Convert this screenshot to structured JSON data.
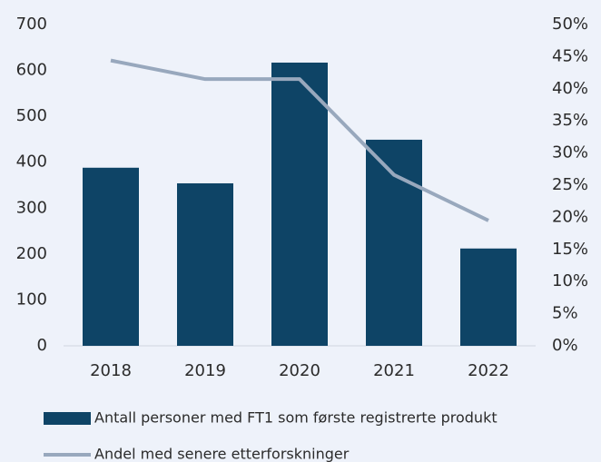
{
  "chart_data": {
    "type": "bar_line",
    "categories": [
      "2018",
      "2019",
      "2020",
      "2021",
      "2022"
    ],
    "series": [
      {
        "name": "Antall personer med FT1 som første registrerte produkt",
        "type": "bar",
        "color": "#0e4466",
        "values": [
          388,
          354,
          617,
          449,
          212
        ]
      },
      {
        "name": "Andel med senere etterforskninger",
        "type": "line",
        "axis": "y2",
        "color": "#98a8bd",
        "values": [
          44.4,
          41.5,
          41.5,
          26.6,
          19.5
        ]
      }
    ],
    "ylim": [
      0,
      700
    ],
    "yticks": [
      0,
      100,
      200,
      300,
      400,
      500,
      600,
      700
    ],
    "y2lim": [
      0,
      50
    ],
    "y2ticks": [
      {
        "value": 0,
        "label": "0%"
      },
      {
        "value": 5,
        "label": "5%"
      },
      {
        "value": 10,
        "label": "10%"
      },
      {
        "value": 15,
        "label": "15%"
      },
      {
        "value": 20,
        "label": "20%"
      },
      {
        "value": 25,
        "label": "25%"
      },
      {
        "value": 30,
        "label": "30%"
      },
      {
        "value": 35,
        "label": "35%"
      },
      {
        "value": 40,
        "label": "40%"
      },
      {
        "value": 45,
        "label": "45%"
      },
      {
        "value": 50,
        "label": "50%"
      }
    ],
    "legend": "bottom"
  }
}
